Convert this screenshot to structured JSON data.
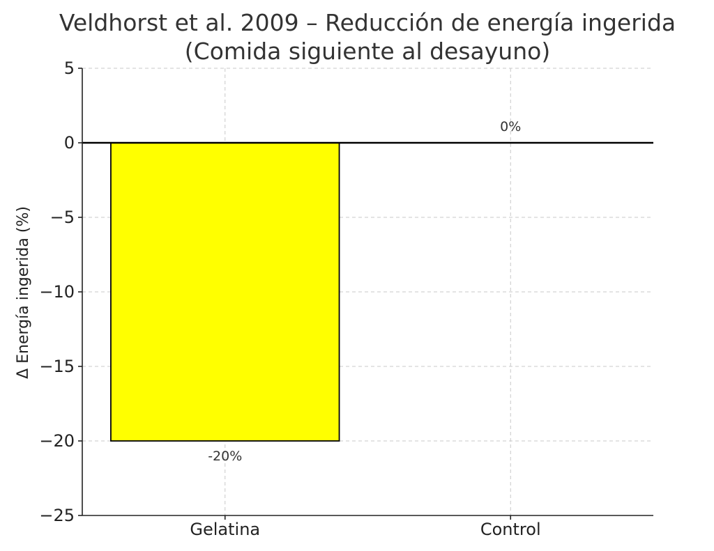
{
  "chart_data": {
    "type": "bar",
    "title": "Veldhorst et al. 2009 – Reducción de energía ingerida",
    "subtitle": "(Comida siguiente al desayuno)",
    "xlabel": "",
    "ylabel": "Δ Energía ingerida (%)",
    "categories": [
      "Gelatina",
      "Control"
    ],
    "values": [
      -20,
      0
    ],
    "data_labels": [
      "-20%",
      "0%"
    ],
    "ylim": [
      -25,
      5
    ],
    "yticks": [
      5,
      0,
      -5,
      -10,
      -15,
      -20,
      -25
    ],
    "ytick_labels": [
      "5",
      "0",
      "−5",
      "−10",
      "−15",
      "−20",
      "−25"
    ],
    "grid": true,
    "zero_line": true,
    "colors": {
      "bar_fill": "#ffff00",
      "bar_edge": "#000000",
      "grid": "#c8c8c8",
      "axis": "#222222"
    }
  }
}
